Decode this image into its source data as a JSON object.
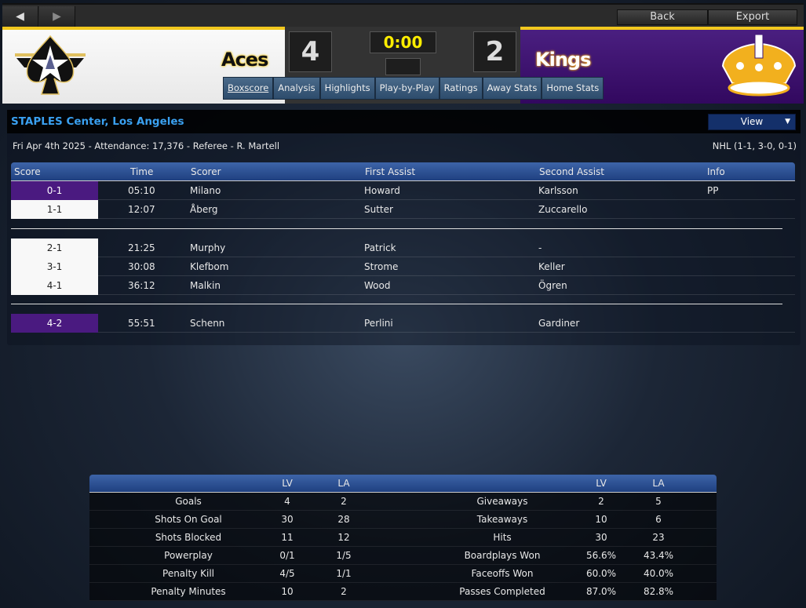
{
  "toolbar": {
    "back_label": "Back",
    "export_label": "Export",
    "nav_back_icon": "arrow-left-icon",
    "nav_forward_icon": "arrow-right-icon"
  },
  "game": {
    "away": {
      "name": "Aces",
      "score": "4",
      "color": "#f2c81e"
    },
    "home": {
      "name": "Kings",
      "score": "2",
      "color": "#3c1470"
    },
    "clock": "0:00"
  },
  "tabs": [
    {
      "label": "Boxscore",
      "active": true
    },
    {
      "label": "Analysis"
    },
    {
      "label": "Highlights"
    },
    {
      "label": "Play-by-Play"
    },
    {
      "label": "Ratings"
    },
    {
      "label": "Away Stats"
    },
    {
      "label": "Home Stats"
    }
  ],
  "venue": {
    "title": "STAPLES Center, Los Angeles",
    "view_label": "View",
    "info": "Fri Apr 4th 2025 - Attendance: 17,376 - Referee - R. Martell",
    "league": "NHL (1-1, 3-0, 0-1)"
  },
  "scoring": {
    "headers": [
      "Score",
      "Time",
      "Scorer",
      "First Assist",
      "Second Assist",
      "Info"
    ],
    "periods": [
      [
        {
          "score": "0-1",
          "team": "home",
          "time": "05:10",
          "scorer": "Milano",
          "a1": "Howard",
          "a2": "Karlsson",
          "info": "PP"
        },
        {
          "score": "1-1",
          "team": "away",
          "time": "12:07",
          "scorer": "Åberg",
          "a1": "Sutter",
          "a2": "Zuccarello",
          "info": ""
        }
      ],
      [
        {
          "score": "2-1",
          "team": "away",
          "time": "21:25",
          "scorer": "Murphy",
          "a1": "Patrick",
          "a2": "-",
          "info": ""
        },
        {
          "score": "3-1",
          "team": "away",
          "time": "30:08",
          "scorer": "Klefbom",
          "a1": "Strome",
          "a2": "Keller",
          "info": ""
        },
        {
          "score": "4-1",
          "team": "away",
          "time": "36:12",
          "scorer": "Malkin",
          "a1": "Wood",
          "a2": "Ögren",
          "info": ""
        }
      ],
      [
        {
          "score": "4-2",
          "team": "home",
          "time": "55:51",
          "scorer": "Schenn",
          "a1": "Perlini",
          "a2": "Gardiner",
          "info": ""
        }
      ]
    ]
  },
  "stats": {
    "headers": [
      "LV",
      "LA",
      "LV",
      "LA"
    ],
    "rows": [
      {
        "l1": "Goals",
        "v1": "4",
        "w1": "2",
        "l2": "Giveaways",
        "v2": "2",
        "w2": "5"
      },
      {
        "l1": "Shots On Goal",
        "v1": "30",
        "w1": "28",
        "l2": "Takeaways",
        "v2": "10",
        "w2": "6"
      },
      {
        "l1": "Shots Blocked",
        "v1": "11",
        "w1": "12",
        "l2": "Hits",
        "v2": "30",
        "w2": "23"
      },
      {
        "l1": "Powerplay",
        "v1": "0/1",
        "w1": "1/5",
        "l2": "Boardplays Won",
        "v2": "56.6%",
        "w2": "43.4%"
      },
      {
        "l1": "Penalty Kill",
        "v1": "4/5",
        "w1": "1/1",
        "l2": "Faceoffs Won",
        "v2": "60.0%",
        "w2": "40.0%"
      },
      {
        "l1": "Penalty Minutes",
        "v1": "10",
        "w1": "2",
        "l2": "Passes Completed",
        "v2": "87.0%",
        "w2": "82.8%"
      }
    ]
  }
}
